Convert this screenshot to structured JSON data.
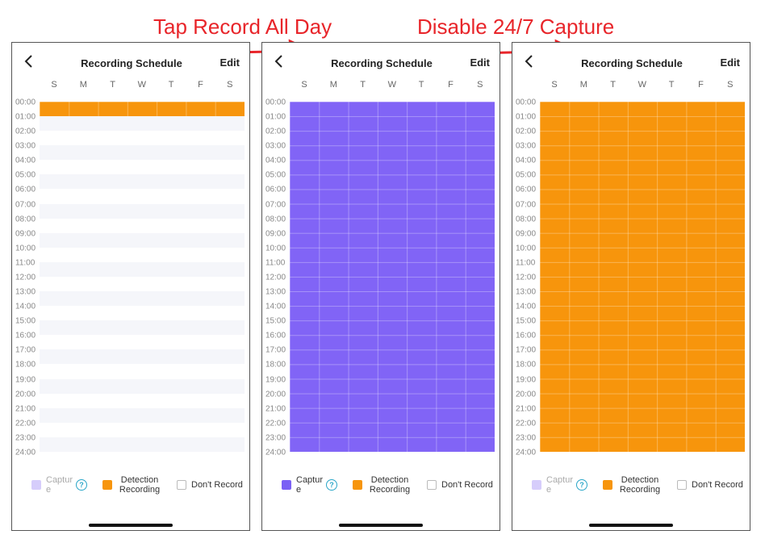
{
  "annotations": [
    "Tap Record All Day",
    "Disable 24/7 Capture"
  ],
  "screens": [
    {
      "title": "Recording Schedule",
      "action": "Edit",
      "days": [
        "S",
        "M",
        "T",
        "W",
        "T",
        "F",
        "S"
      ],
      "hours": [
        "00:00",
        "01:00",
        "02:00",
        "03:00",
        "04:00",
        "05:00",
        "06:00",
        "07:00",
        "08:00",
        "09:00",
        "10:00",
        "11:00",
        "12:00",
        "13:00",
        "14:00",
        "15:00",
        "16:00",
        "17:00",
        "18:00",
        "19:00",
        "20:00",
        "21:00",
        "22:00",
        "23:00",
        "24:00"
      ],
      "legend": {
        "capture": "Capture",
        "help": "?",
        "detection": "Detection Recording",
        "none": "Don't Record"
      }
    },
    {
      "title": "Recording Schedule",
      "action": "Edit",
      "days": [
        "S",
        "M",
        "T",
        "W",
        "T",
        "F",
        "S"
      ],
      "hours": [
        "00:00",
        "01:00",
        "02:00",
        "03:00",
        "04:00",
        "05:00",
        "06:00",
        "07:00",
        "08:00",
        "09:00",
        "10:00",
        "11:00",
        "12:00",
        "13:00",
        "14:00",
        "15:00",
        "16:00",
        "17:00",
        "18:00",
        "19:00",
        "20:00",
        "21:00",
        "22:00",
        "23:00",
        "24:00"
      ],
      "legend": {
        "capture": "Capture",
        "help": "?",
        "detection": "Detection Recording",
        "none": "Don't Record"
      }
    },
    {
      "title": "Recording Schedule",
      "action": "Edit",
      "days": [
        "S",
        "M",
        "T",
        "W",
        "T",
        "F",
        "S"
      ],
      "hours": [
        "00:00",
        "01:00",
        "02:00",
        "03:00",
        "04:00",
        "05:00",
        "06:00",
        "07:00",
        "08:00",
        "09:00",
        "10:00",
        "11:00",
        "12:00",
        "13:00",
        "14:00",
        "15:00",
        "16:00",
        "17:00",
        "18:00",
        "19:00",
        "20:00",
        "21:00",
        "22:00",
        "23:00",
        "24:00"
      ],
      "legend": {
        "capture": "Capture",
        "help": "?",
        "detection": "Detection Recording",
        "none": "Don't Record"
      }
    }
  ]
}
